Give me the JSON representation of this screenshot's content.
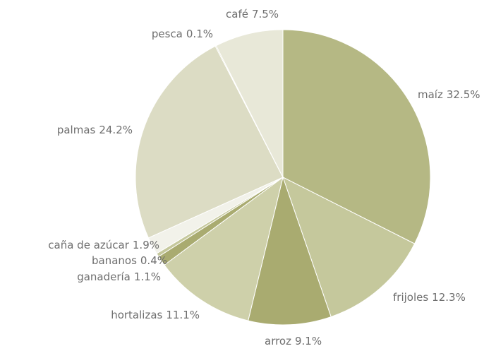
{
  "chart_data": {
    "type": "pie",
    "categories": [
      "maíz",
      "frijoles",
      "arroz",
      "hortalizas",
      "ganadería",
      "bananos",
      "caña de azúcar",
      "palmas",
      "pesca",
      "café"
    ],
    "values": [
      32.5,
      12.3,
      9.1,
      11.1,
      1.1,
      0.4,
      1.9,
      24.2,
      0.1,
      7.5
    ],
    "value_labels": [
      "32.5%",
      "12.3%",
      "9.1%",
      "11.1%",
      "1.1%",
      "0.4%",
      "1.9%",
      "24.2%",
      "0.1%",
      "7.5%"
    ],
    "colors": [
      "#b5b884",
      "#c5c89c",
      "#a9ab70",
      "#ced0aa",
      "#a9ab70",
      "#c5c89c",
      "#f2f2ea",
      "#dcdcc4",
      "#b5b884",
      "#e8e8d8"
    ]
  }
}
